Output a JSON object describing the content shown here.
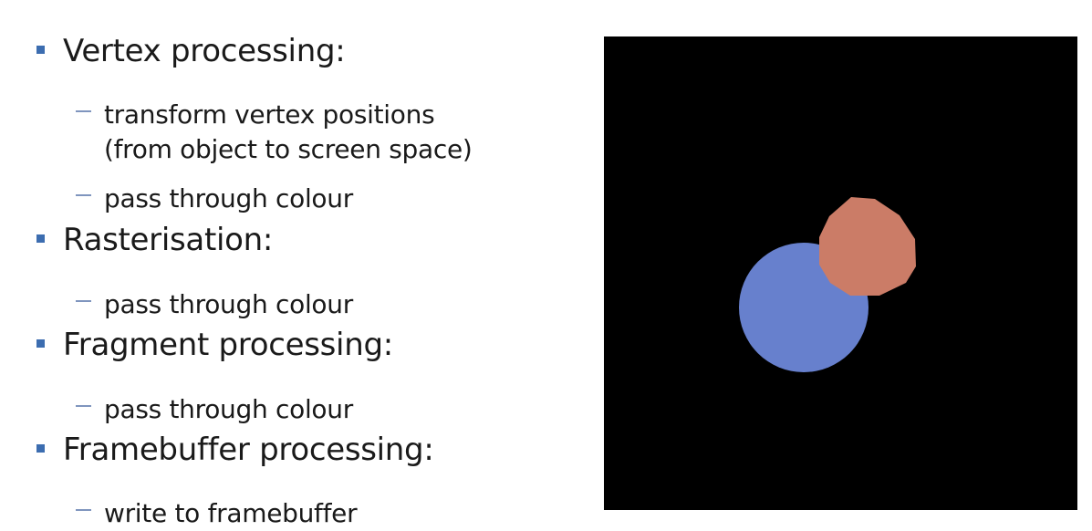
{
  "slide": {
    "items": [
      {
        "heading": "Vertex processing:",
        "subitems": [
          {
            "lines": [
              "transform vertex positions",
              "(from object to screen space)"
            ]
          },
          {
            "lines": [
              "pass through colour"
            ]
          }
        ]
      },
      {
        "heading": "Rasterisation:",
        "subitems": [
          {
            "lines": [
              "pass through colour"
            ]
          }
        ]
      },
      {
        "heading": "Fragment processing:",
        "subitems": [
          {
            "lines": [
              "pass through colour"
            ]
          }
        ]
      },
      {
        "heading": "Framebuffer processing:",
        "subitems": [
          {
            "lines": [
              "write to framebuffer"
            ]
          }
        ]
      }
    ]
  },
  "render": {
    "background": "#000000",
    "blue_circle_color": "#6780cd",
    "orange_polygon_color": "#cb7c67"
  },
  "colors": {
    "bullet": "#3c6db0",
    "dash": "#7f95be",
    "text": "#1a1a1a"
  }
}
